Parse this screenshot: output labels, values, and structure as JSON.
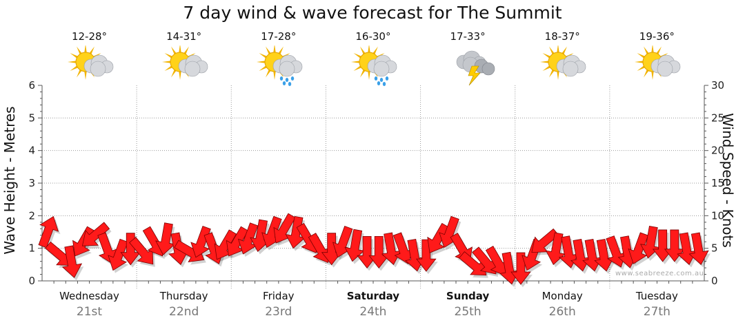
{
  "title": "7 day wind & wave forecast for The Summit",
  "days": [
    {
      "name": "Wednesday",
      "date": "21st",
      "temp": "12-28°",
      "icon": "sun-cloud-icon",
      "bold": false
    },
    {
      "name": "Thursday",
      "date": "22nd",
      "temp": "14-31°",
      "icon": "sun-cloud-icon",
      "bold": false
    },
    {
      "name": "Friday",
      "date": "23rd",
      "temp": "17-28°",
      "icon": "sun-cloud-rain-icon",
      "bold": false
    },
    {
      "name": "Saturday",
      "date": "24th",
      "temp": "16-30°",
      "icon": "sun-cloud-rain-icon",
      "bold": true
    },
    {
      "name": "Sunday",
      "date": "25th",
      "temp": "17-33°",
      "icon": "storm-cloud-icon",
      "bold": true
    },
    {
      "name": "Monday",
      "date": "26th",
      "temp": "18-37°",
      "icon": "sun-cloud-icon",
      "bold": false
    },
    {
      "name": "Tuesday",
      "date": "27th",
      "temp": "19-36°",
      "icon": "sun-cloud-icon",
      "bold": false
    }
  ],
  "credit": "www.seabreeze.com.au",
  "colors": {
    "arrow": "#ff1a1a",
    "arrow_stroke": "#7a0000",
    "grid": "#999999",
    "axis": "#555555"
  },
  "chart_data": {
    "type": "line",
    "ylabel": "Wave Height - Metres",
    "y2label": "Wind Speed - Knots",
    "ylim": [
      0,
      6
    ],
    "y2lim": [
      0,
      30
    ],
    "yticks": [
      "0",
      "1",
      "2",
      "3",
      "4",
      "5",
      "6"
    ],
    "y2ticks": [
      "0",
      "5",
      "10",
      "15",
      "20",
      "25",
      "30"
    ],
    "categories": [
      "Wednesday 21st",
      "Thursday 22nd",
      "Friday 23rd",
      "Saturday 24th",
      "Sunday 25th",
      "Monday 26th",
      "Tuesday 27th"
    ],
    "grid": true,
    "series": [
      {
        "values_description": "wind speed knots per 3-hour step with direction (degrees the arrow points)",
        "x": [
          0,
          0.125,
          0.25,
          0.375,
          0.5,
          0.625,
          0.75,
          0.875,
          1,
          1.125,
          1.25,
          1.375,
          1.5,
          1.625,
          1.75,
          1.875,
          2,
          2.125,
          2.25,
          2.375,
          2.5,
          2.625,
          2.75,
          2.875,
          3,
          3.125,
          3.25,
          3.375,
          3.5,
          3.625,
          3.75,
          3.875,
          4,
          4.125,
          4.25,
          4.375,
          4.5,
          4.625,
          4.75,
          4.875,
          5,
          5.125,
          5.25,
          5.375,
          5.5,
          5.625,
          5.75,
          5.875,
          6,
          6.125,
          6.25,
          6.375,
          6.5,
          6.625,
          6.75,
          6.875
        ],
        "knots": [
          7.5,
          4,
          3,
          6,
          7,
          5,
          4,
          5,
          4.5,
          6,
          6.5,
          5,
          4.5,
          6,
          5,
          5.5,
          6,
          6.5,
          7,
          7.5,
          8,
          7.5,
          6.5,
          5,
          5,
          6,
          5.5,
          4.5,
          4.5,
          5,
          5,
          4,
          4,
          6.5,
          7.5,
          5,
          2.5,
          3,
          3,
          2,
          2,
          4,
          6,
          5,
          4.5,
          4,
          4,
          4,
          4.5,
          4.5,
          5,
          6,
          5.5,
          5.5,
          5,
          5
        ],
        "dir": [
          20,
          130,
          170,
          210,
          230,
          160,
          200,
          180,
          140,
          150,
          190,
          170,
          120,
          200,
          160,
          210,
          210,
          200,
          190,
          200,
          210,
          190,
          150,
          150,
          180,
          200,
          190,
          180,
          180,
          170,
          160,
          170,
          180,
          210,
          200,
          150,
          130,
          140,
          150,
          170,
          180,
          200,
          230,
          190,
          170,
          170,
          170,
          170,
          160,
          170,
          200,
          190,
          180,
          180,
          170,
          170
        ]
      }
    ]
  }
}
